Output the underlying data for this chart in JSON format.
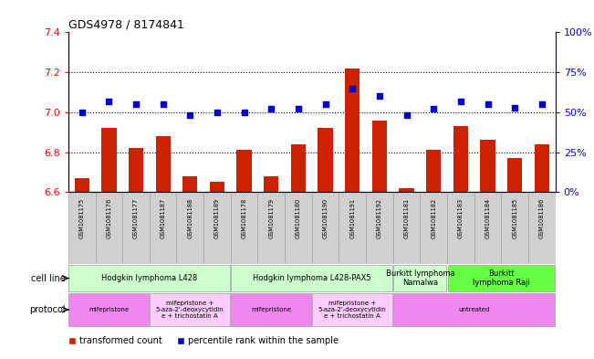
{
  "title": "GDS4978 / 8174841",
  "samples": [
    "GSM1081175",
    "GSM1081176",
    "GSM1081177",
    "GSM1081187",
    "GSM1081188",
    "GSM1081189",
    "GSM1081178",
    "GSM1081179",
    "GSM1081180",
    "GSM1081190",
    "GSM1081191",
    "GSM1081192",
    "GSM1081181",
    "GSM1081182",
    "GSM1081183",
    "GSM1081184",
    "GSM1081185",
    "GSM1081186"
  ],
  "bar_values": [
    6.67,
    6.92,
    6.82,
    6.88,
    6.68,
    6.65,
    6.81,
    6.68,
    6.84,
    6.92,
    7.22,
    6.96,
    6.62,
    6.81,
    6.93,
    6.86,
    6.77,
    6.84
  ],
  "dot_values": [
    50,
    57,
    55,
    55,
    48,
    50,
    50,
    52,
    52,
    55,
    65,
    60,
    48,
    52,
    57,
    55,
    53,
    55
  ],
  "bar_color": "#cc2200",
  "dot_color": "#0000cc",
  "ylim_left": [
    6.6,
    7.4
  ],
  "ylim_right": [
    0,
    100
  ],
  "yticks_left": [
    6.6,
    6.8,
    7.0,
    7.2,
    7.4
  ],
  "yticks_right": [
    0,
    25,
    50,
    75,
    100
  ],
  "ytick_labels_right": [
    "0%",
    "25%",
    "50%",
    "75%",
    "100%"
  ],
  "grid_values": [
    6.8,
    7.0,
    7.2
  ],
  "cell_line_groups": [
    {
      "label": "Hodgkin lymphoma L428",
      "start": 0,
      "end": 6,
      "color": "#ccffcc"
    },
    {
      "label": "Hodgkin lymphoma L428-PAX5",
      "start": 6,
      "end": 12,
      "color": "#ccffcc"
    },
    {
      "label": "Burkitt lymphoma\nNamalwa",
      "start": 12,
      "end": 14,
      "color": "#ccffcc"
    },
    {
      "label": "Burkitt\nlymphoma Raji",
      "start": 14,
      "end": 18,
      "color": "#66ff44"
    }
  ],
  "protocol_groups": [
    {
      "label": "mifepristone",
      "start": 0,
      "end": 3,
      "color": "#ee88ee"
    },
    {
      "label": "mifepristone +\n5-aza-2'-deoxycytidin\ne + trichostatin A",
      "start": 3,
      "end": 6,
      "color": "#ffccff"
    },
    {
      "label": "mifepristone",
      "start": 6,
      "end": 9,
      "color": "#ee88ee"
    },
    {
      "label": "mifepristone +\n5-aza-2'-deoxycytidin\ne + trichostatin A",
      "start": 9,
      "end": 12,
      "color": "#ffccff"
    },
    {
      "label": "untreated",
      "start": 12,
      "end": 18,
      "color": "#ee88ee"
    }
  ],
  "bar_width": 0.55,
  "sample_bg": "#d8d8d8",
  "axis_bg": "#ffffff"
}
